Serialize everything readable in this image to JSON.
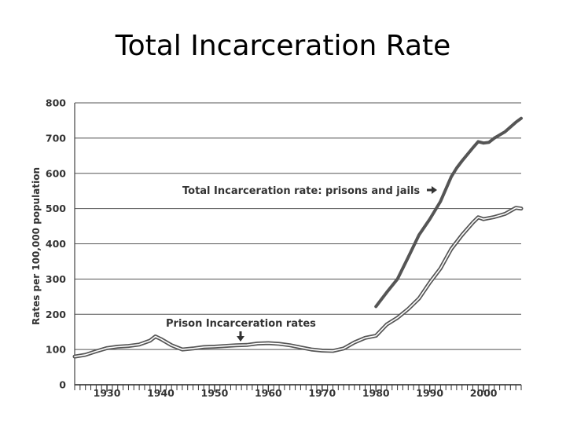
{
  "slide": {
    "title": "Total Incarceration Rate"
  },
  "chart_data": {
    "type": "line",
    "title": "",
    "xlabel": "",
    "ylabel": "Rates per 100,000 population",
    "xlim": [
      1924,
      2007
    ],
    "ylim": [
      0,
      800
    ],
    "x_ticks": [
      1930,
      1940,
      1950,
      1960,
      1970,
      1980,
      1990,
      2000
    ],
    "y_ticks": [
      0,
      100,
      200,
      300,
      400,
      500,
      600,
      700,
      800
    ],
    "grid": true,
    "legend": "none",
    "series": [
      {
        "name": "Total Incarceration rate: prisons and jails",
        "style": "solid",
        "color": "#555555",
        "x": [
          1980,
          1982,
          1984,
          1986,
          1988,
          1990,
          1992,
          1994,
          1995,
          1996,
          1998,
          1999,
          2000,
          2001,
          2002,
          2004,
          2006,
          2007
        ],
        "y": [
          222,
          262,
          300,
          362,
          425,
          470,
          520,
          590,
          615,
          635,
          672,
          690,
          686,
          688,
          700,
          718,
          745,
          756
        ]
      },
      {
        "name": "Prison incarceration rates",
        "style": "double",
        "color": "#555555",
        "x": [
          1924,
          1926,
          1928,
          1930,
          1932,
          1934,
          1936,
          1938,
          1939,
          1940,
          1942,
          1944,
          1946,
          1948,
          1950,
          1952,
          1954,
          1956,
          1958,
          1960,
          1962,
          1964,
          1966,
          1968,
          1970,
          1972,
          1974,
          1976,
          1978,
          1980,
          1982,
          1984,
          1986,
          1988,
          1990,
          1992,
          1994,
          1996,
          1998,
          1999,
          2000,
          2002,
          2004,
          2006,
          2007
        ],
        "y": [
          80,
          85,
          95,
          104,
          108,
          110,
          114,
          125,
          137,
          130,
          112,
          100,
          103,
          107,
          108,
          110,
          112,
          113,
          117,
          118,
          116,
          112,
          106,
          100,
          97,
          96,
          103,
          120,
          133,
          139,
          171,
          190,
          215,
          245,
          290,
          330,
          385,
          425,
          460,
          475,
          470,
          476,
          485,
          502,
          500
        ]
      }
    ],
    "annotations": [
      {
        "text": "Total Incarceration rate: prisons and jails",
        "arrow": "right"
      },
      {
        "text": "Prison Incarceration rates",
        "arrow": "down"
      }
    ]
  }
}
